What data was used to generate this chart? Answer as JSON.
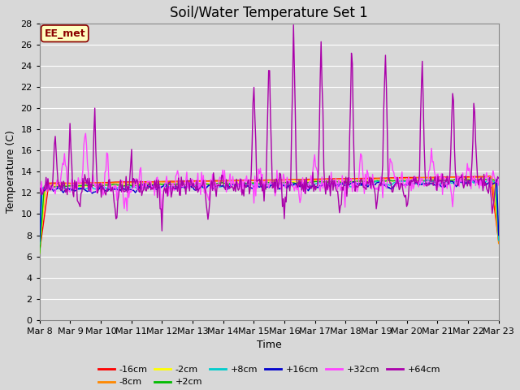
{
  "title": "Soil/Water Temperature Set 1",
  "ylabel": "Temperature (C)",
  "xlabel": "Time",
  "annotation": "EE_met",
  "ylim": [
    0,
    28
  ],
  "yticks": [
    0,
    2,
    4,
    6,
    8,
    10,
    12,
    14,
    16,
    18,
    20,
    22,
    24,
    26,
    28
  ],
  "num_points": 500,
  "series_order": [
    "-16cm",
    "-8cm",
    "-2cm",
    "+2cm",
    "+8cm",
    "+16cm",
    "+32cm",
    "+64cm"
  ],
  "colors": {
    "-16cm": "#ff0000",
    "-8cm": "#ff8800",
    "-2cm": "#ffff00",
    "+2cm": "#00bb00",
    "+8cm": "#00cccc",
    "+16cm": "#0000cc",
    "+32cm": "#ff44ff",
    "+64cm": "#aa00aa"
  },
  "bg_color": "#d8d8d8",
  "plot_bg_color": "#d8d8d8",
  "grid_color": "#ffffff",
  "title_fontsize": 12,
  "axis_label_fontsize": 9,
  "tick_label_fontsize": 8,
  "legend_fontsize": 8,
  "x_labels": [
    "Mar 8",
    "Mar 9",
    "Mar 10",
    "Mar 11",
    "Mar 12",
    "Mar 13",
    "Mar 14",
    "Mar 15",
    "Mar 16",
    "Mar 17",
    "Mar 18",
    "Mar 19",
    "Mar 20",
    "Mar 21",
    "Mar 22",
    "Mar 23"
  ]
}
